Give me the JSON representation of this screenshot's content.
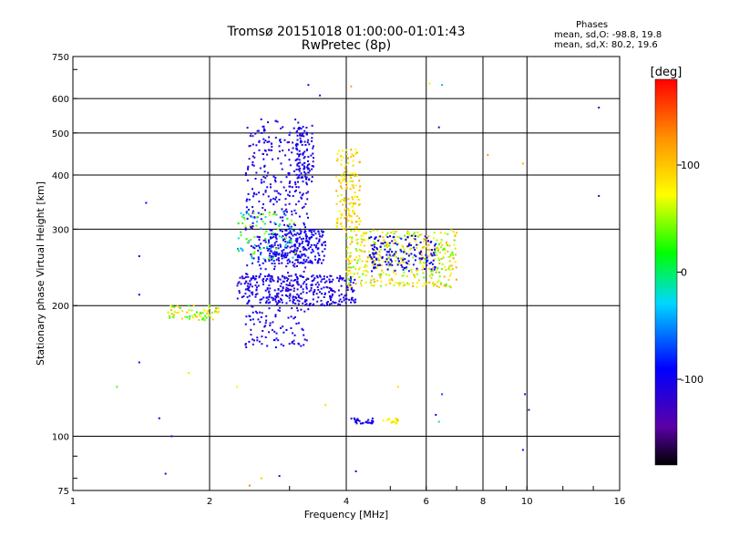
{
  "chart_data": {
    "type": "scatter",
    "title": "Tromsø 20151018 01:00:00-01:01:43",
    "subtitle": "RwPretec (8p)",
    "xlabel": "Frequency [MHz]",
    "ylabel": "Stationary phase Virtual Height [km]",
    "x_scale": "log",
    "y_scale": "log",
    "xlim": [
      1,
      16
    ],
    "ylim": [
      75,
      750
    ],
    "x_ticks": [
      1,
      2,
      4,
      6,
      8,
      10,
      16
    ],
    "x_tick_labels": [
      "1",
      "2",
      "4",
      "6",
      "8",
      "10",
      "16"
    ],
    "y_ticks": [
      75,
      100,
      200,
      300,
      400,
      500,
      600,
      750
    ],
    "y_tick_labels": [
      "75",
      "100",
      "200",
      "300",
      "400",
      "500",
      "600",
      "750"
    ],
    "grid": true,
    "colorbar": {
      "label": "[deg]",
      "range": [
        -180,
        180
      ],
      "ticks": [
        -100,
        0,
        100
      ],
      "tick_labels": [
        "-100",
        "0",
        "100"
      ]
    },
    "stats": {
      "heading": "Phases",
      "line_o": "mean, sd,O: -98.8, 19.8",
      "line_x": "mean, sd,X:  80.2, 19.6"
    },
    "clusters": [
      {
        "f": [
          2.4,
          3.3
        ],
        "h": [
          160,
          540
        ],
        "phase": [
          -125,
          -85
        ],
        "n": 520
      },
      {
        "f": [
          2.7,
          3.6
        ],
        "h": [
          250,
          300
        ],
        "phase": [
          -120,
          -80
        ],
        "n": 220
      },
      {
        "f": [
          2.3,
          4.2
        ],
        "h": [
          200,
          235
        ],
        "phase": [
          -125,
          -90
        ],
        "n": 300
      },
      {
        "f": [
          3.1,
          3.4
        ],
        "h": [
          380,
          520
        ],
        "phase": [
          -120,
          -90
        ],
        "n": 90
      },
      {
        "f": [
          1.6,
          2.1
        ],
        "h": [
          185,
          200
        ],
        "phase": [
          20,
          110
        ],
        "n": 70
      },
      {
        "f": [
          3.8,
          4.3
        ],
        "h": [
          300,
          460
        ],
        "phase": [
          60,
          120
        ],
        "n": 140
      },
      {
        "f": [
          4.0,
          7.0
        ],
        "h": [
          220,
          300
        ],
        "phase": [
          30,
          120
        ],
        "n": 420
      },
      {
        "f": [
          4.5,
          6.3
        ],
        "h": [
          240,
          290
        ],
        "phase": [
          -110,
          -80
        ],
        "n": 150
      },
      {
        "f": [
          2.3,
          3.1
        ],
        "h": [
          255,
          330
        ],
        "phase": [
          -60,
          60
        ],
        "n": 90
      },
      {
        "f": [
          4.1,
          4.6
        ],
        "h": [
          107,
          110
        ],
        "phase": [
          -110,
          -90
        ],
        "n": 30
      },
      {
        "f": [
          4.8,
          5.2
        ],
        "h": [
          107,
          110
        ],
        "phase": [
          60,
          110
        ],
        "n": 20
      }
    ],
    "outliers": [
      {
        "f": 1.45,
        "h": 345,
        "phase": -110
      },
      {
        "f": 1.4,
        "h": 260,
        "phase": -95
      },
      {
        "f": 1.4,
        "h": 212,
        "phase": -95
      },
      {
        "f": 1.4,
        "h": 148,
        "phase": -110
      },
      {
        "f": 1.55,
        "h": 110,
        "phase": -100
      },
      {
        "f": 1.6,
        "h": 82,
        "phase": -110
      },
      {
        "f": 1.65,
        "h": 100,
        "phase": -100
      },
      {
        "f": 1.25,
        "h": 130,
        "phase": 30
      },
      {
        "f": 1.8,
        "h": 140,
        "phase": 60
      },
      {
        "f": 2.6,
        "h": 80,
        "phase": 100
      },
      {
        "f": 2.45,
        "h": 77,
        "phase": 130
      },
      {
        "f": 2.85,
        "h": 81,
        "phase": -100
      },
      {
        "f": 4.2,
        "h": 83,
        "phase": -100
      },
      {
        "f": 6.5,
        "h": 125,
        "phase": -70
      },
      {
        "f": 6.4,
        "h": 108,
        "phase": 0
      },
      {
        "f": 6.3,
        "h": 112,
        "phase": -90
      },
      {
        "f": 6.4,
        "h": 515,
        "phase": -110
      },
      {
        "f": 6.5,
        "h": 645,
        "phase": -40
      },
      {
        "f": 6.1,
        "h": 650,
        "phase": 80
      },
      {
        "f": 8.2,
        "h": 445,
        "phase": 120
      },
      {
        "f": 9.8,
        "h": 425,
        "phase": 110
      },
      {
        "f": 9.9,
        "h": 125,
        "phase": -110
      },
      {
        "f": 10.1,
        "h": 115,
        "phase": -150
      },
      {
        "f": 9.8,
        "h": 93,
        "phase": -120
      },
      {
        "f": 14.4,
        "h": 572,
        "phase": -110
      },
      {
        "f": 14.4,
        "h": 358,
        "phase": -110
      },
      {
        "f": 3.3,
        "h": 645,
        "phase": -110
      },
      {
        "f": 4.1,
        "h": 640,
        "phase": 120
      },
      {
        "f": 3.5,
        "h": 610,
        "phase": -120
      },
      {
        "f": 2.3,
        "h": 130,
        "phase": 80
      },
      {
        "f": 3.6,
        "h": 118,
        "phase": 90
      },
      {
        "f": 5.2,
        "h": 130,
        "phase": 90
      }
    ]
  }
}
